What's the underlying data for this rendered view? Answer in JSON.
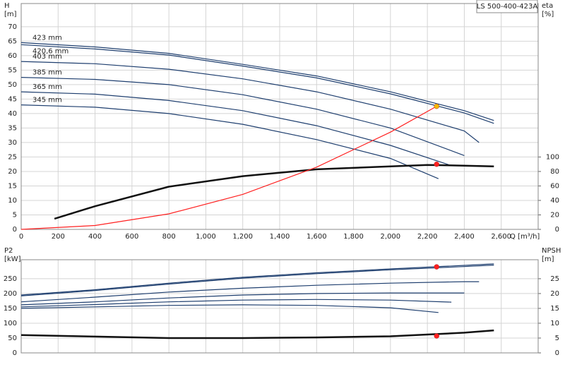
{
  "chart_data": [
    {
      "type": "line",
      "title": "LS 500-400-423A",
      "y_label": "H",
      "y_unit": "[m]",
      "y2_label": "eta",
      "y2_unit": "[%]",
      "xlabel": "Q [m³/h]",
      "xlim": [
        0,
        2800
      ],
      "xticks": [
        0,
        200,
        400,
        600,
        800,
        {
          "value": 1000,
          "label": "1,000"
        },
        {
          "value": 1200,
          "label": "1,200"
        },
        {
          "value": 1400,
          "label": "1,400"
        },
        {
          "value": 1600,
          "label": "1,600"
        },
        {
          "value": 1800,
          "label": "1,800"
        },
        {
          "value": 2000,
          "label": "2,000"
        },
        {
          "value": 2200,
          "label": "2,200"
        },
        {
          "value": 2400,
          "label": "2,400"
        },
        {
          "value": 2600,
          "label": "2,600"
        }
      ],
      "ylim": [
        0,
        78
      ],
      "yticks": [
        0,
        5,
        10,
        15,
        20,
        25,
        30,
        35,
        40,
        45,
        50,
        55,
        60,
        65,
        70
      ],
      "y2lim": [
        0,
        312
      ],
      "y2ticks": [
        0,
        20,
        40,
        60,
        80,
        100
      ],
      "grid": true,
      "series": [
        {
          "name": "423 mm",
          "color": "#1f3f6f",
          "x": [
            0,
            400,
            800,
            1200,
            1600,
            2000,
            2400,
            2560
          ],
          "values": [
            64.5,
            63,
            60.8,
            57,
            53,
            47.5,
            41,
            37.6
          ]
        },
        {
          "name": "420,6 mm",
          "color": "#1f3f6f",
          "x": [
            0,
            400,
            800,
            1200,
            1600,
            2000,
            2400,
            2560
          ],
          "values": [
            63.8,
            62.3,
            60.2,
            56.4,
            52.3,
            46.8,
            40.2,
            36.6
          ]
        },
        {
          "name": "403 mm",
          "color": "#1f3f6f",
          "x": [
            0,
            400,
            800,
            1200,
            1600,
            2000,
            2400,
            2480
          ],
          "values": [
            58,
            57.2,
            55.3,
            52,
            47.5,
            41.5,
            34,
            30
          ]
        },
        {
          "name": "385 mm",
          "color": "#1f3f6f",
          "x": [
            0,
            400,
            800,
            1200,
            1600,
            2000,
            2400
          ],
          "values": [
            52.5,
            51.8,
            50,
            46.5,
            41.5,
            35,
            25.5
          ]
        },
        {
          "name": "365 mm",
          "color": "#1f3f6f",
          "x": [
            0,
            400,
            800,
            1200,
            1600,
            2000,
            2330
          ],
          "values": [
            47.5,
            46.7,
            44.5,
            41,
            35.8,
            29,
            22
          ]
        },
        {
          "name": "345 mm",
          "color": "#1f3f6f",
          "x": [
            0,
            400,
            800,
            1200,
            1600,
            2000,
            2260
          ],
          "values": [
            43,
            42.2,
            40,
            36.3,
            31,
            24.5,
            17.5
          ]
        },
        {
          "color": "#111111",
          "axis": "y2",
          "x": [
            180,
            400,
            800,
            1200,
            1600,
            2000,
            2200,
            2400,
            2560
          ],
          "values": [
            14.7,
            32,
            59,
            73.5,
            83,
            87,
            89,
            88,
            87
          ]
        },
        {
          "color": "#ff2020",
          "x": [
            0,
            400,
            800,
            1200,
            1600,
            2000,
            2250
          ],
          "values": [
            0,
            1.34,
            5.37,
            12.09,
            21.49,
            33.58,
            42.5
          ]
        }
      ],
      "markers": [
        {
          "x": 2250,
          "y": 42.5,
          "color": "#f5b800"
        },
        {
          "x": 2250,
          "y": 90,
          "axis": "y2",
          "color": "#ff2020"
        }
      ]
    },
    {
      "type": "line",
      "y_label": "P2",
      "y_unit": "[kW]",
      "y2_label": "NPSH",
      "y2_unit": "[m]",
      "xlim": [
        0,
        2800
      ],
      "xticks": [
        0,
        200,
        400,
        600,
        800,
        1000,
        1200,
        1400,
        1600,
        1800,
        2000,
        2200,
        2400,
        2600
      ],
      "ylim": [
        0,
        314
      ],
      "yticks": [
        0,
        50,
        100,
        150,
        200,
        250
      ],
      "y2lim": [
        0,
        31.4
      ],
      "y2ticks": [
        0,
        5,
        10,
        15,
        20,
        25
      ],
      "grid": true,
      "series": [
        {
          "color": "#1f3f6f",
          "x": [
            0,
            400,
            800,
            1200,
            1600,
            2000,
            2400,
            2560
          ],
          "values": [
            195,
            213,
            235,
            255,
            270,
            283,
            295,
            300
          ]
        },
        {
          "color": "#1f3f6f",
          "x": [
            0,
            400,
            800,
            1200,
            1600,
            2000,
            2400,
            2560
          ],
          "values": [
            192,
            210,
            232,
            252,
            267,
            280,
            291,
            296
          ]
        },
        {
          "color": "#1f3f6f",
          "x": [
            0,
            400,
            800,
            1200,
            1600,
            2000,
            2400,
            2480
          ],
          "values": [
            172,
            188,
            205,
            218,
            228,
            235,
            240,
            240
          ]
        },
        {
          "color": "#1f3f6f",
          "x": [
            0,
            400,
            800,
            1200,
            1600,
            2000,
            2400
          ],
          "values": [
            162,
            172,
            185,
            195,
            200,
            202,
            202
          ]
        },
        {
          "color": "#1f3f6f",
          "x": [
            0,
            400,
            800,
            1200,
            1600,
            2000,
            2330
          ],
          "values": [
            155,
            163,
            172,
            178,
            180,
            178,
            171
          ]
        },
        {
          "color": "#1f3f6f",
          "x": [
            0,
            400,
            800,
            1200,
            1600,
            2000,
            2260
          ],
          "values": [
            150,
            155,
            160,
            162,
            160,
            152,
            136
          ]
        },
        {
          "color": "#111111",
          "axis": "y2",
          "x": [
            0,
            400,
            800,
            1200,
            1600,
            2000,
            2400,
            2560
          ],
          "values": [
            6,
            5.5,
            5,
            5,
            5.2,
            5.6,
            6.8,
            7.6
          ]
        }
      ],
      "markers": [
        {
          "x": 2250,
          "y": 290,
          "color": "#ff2020"
        },
        {
          "x": 2250,
          "y": 5.7,
          "axis": "y2",
          "color": "#ff2020"
        }
      ]
    }
  ]
}
